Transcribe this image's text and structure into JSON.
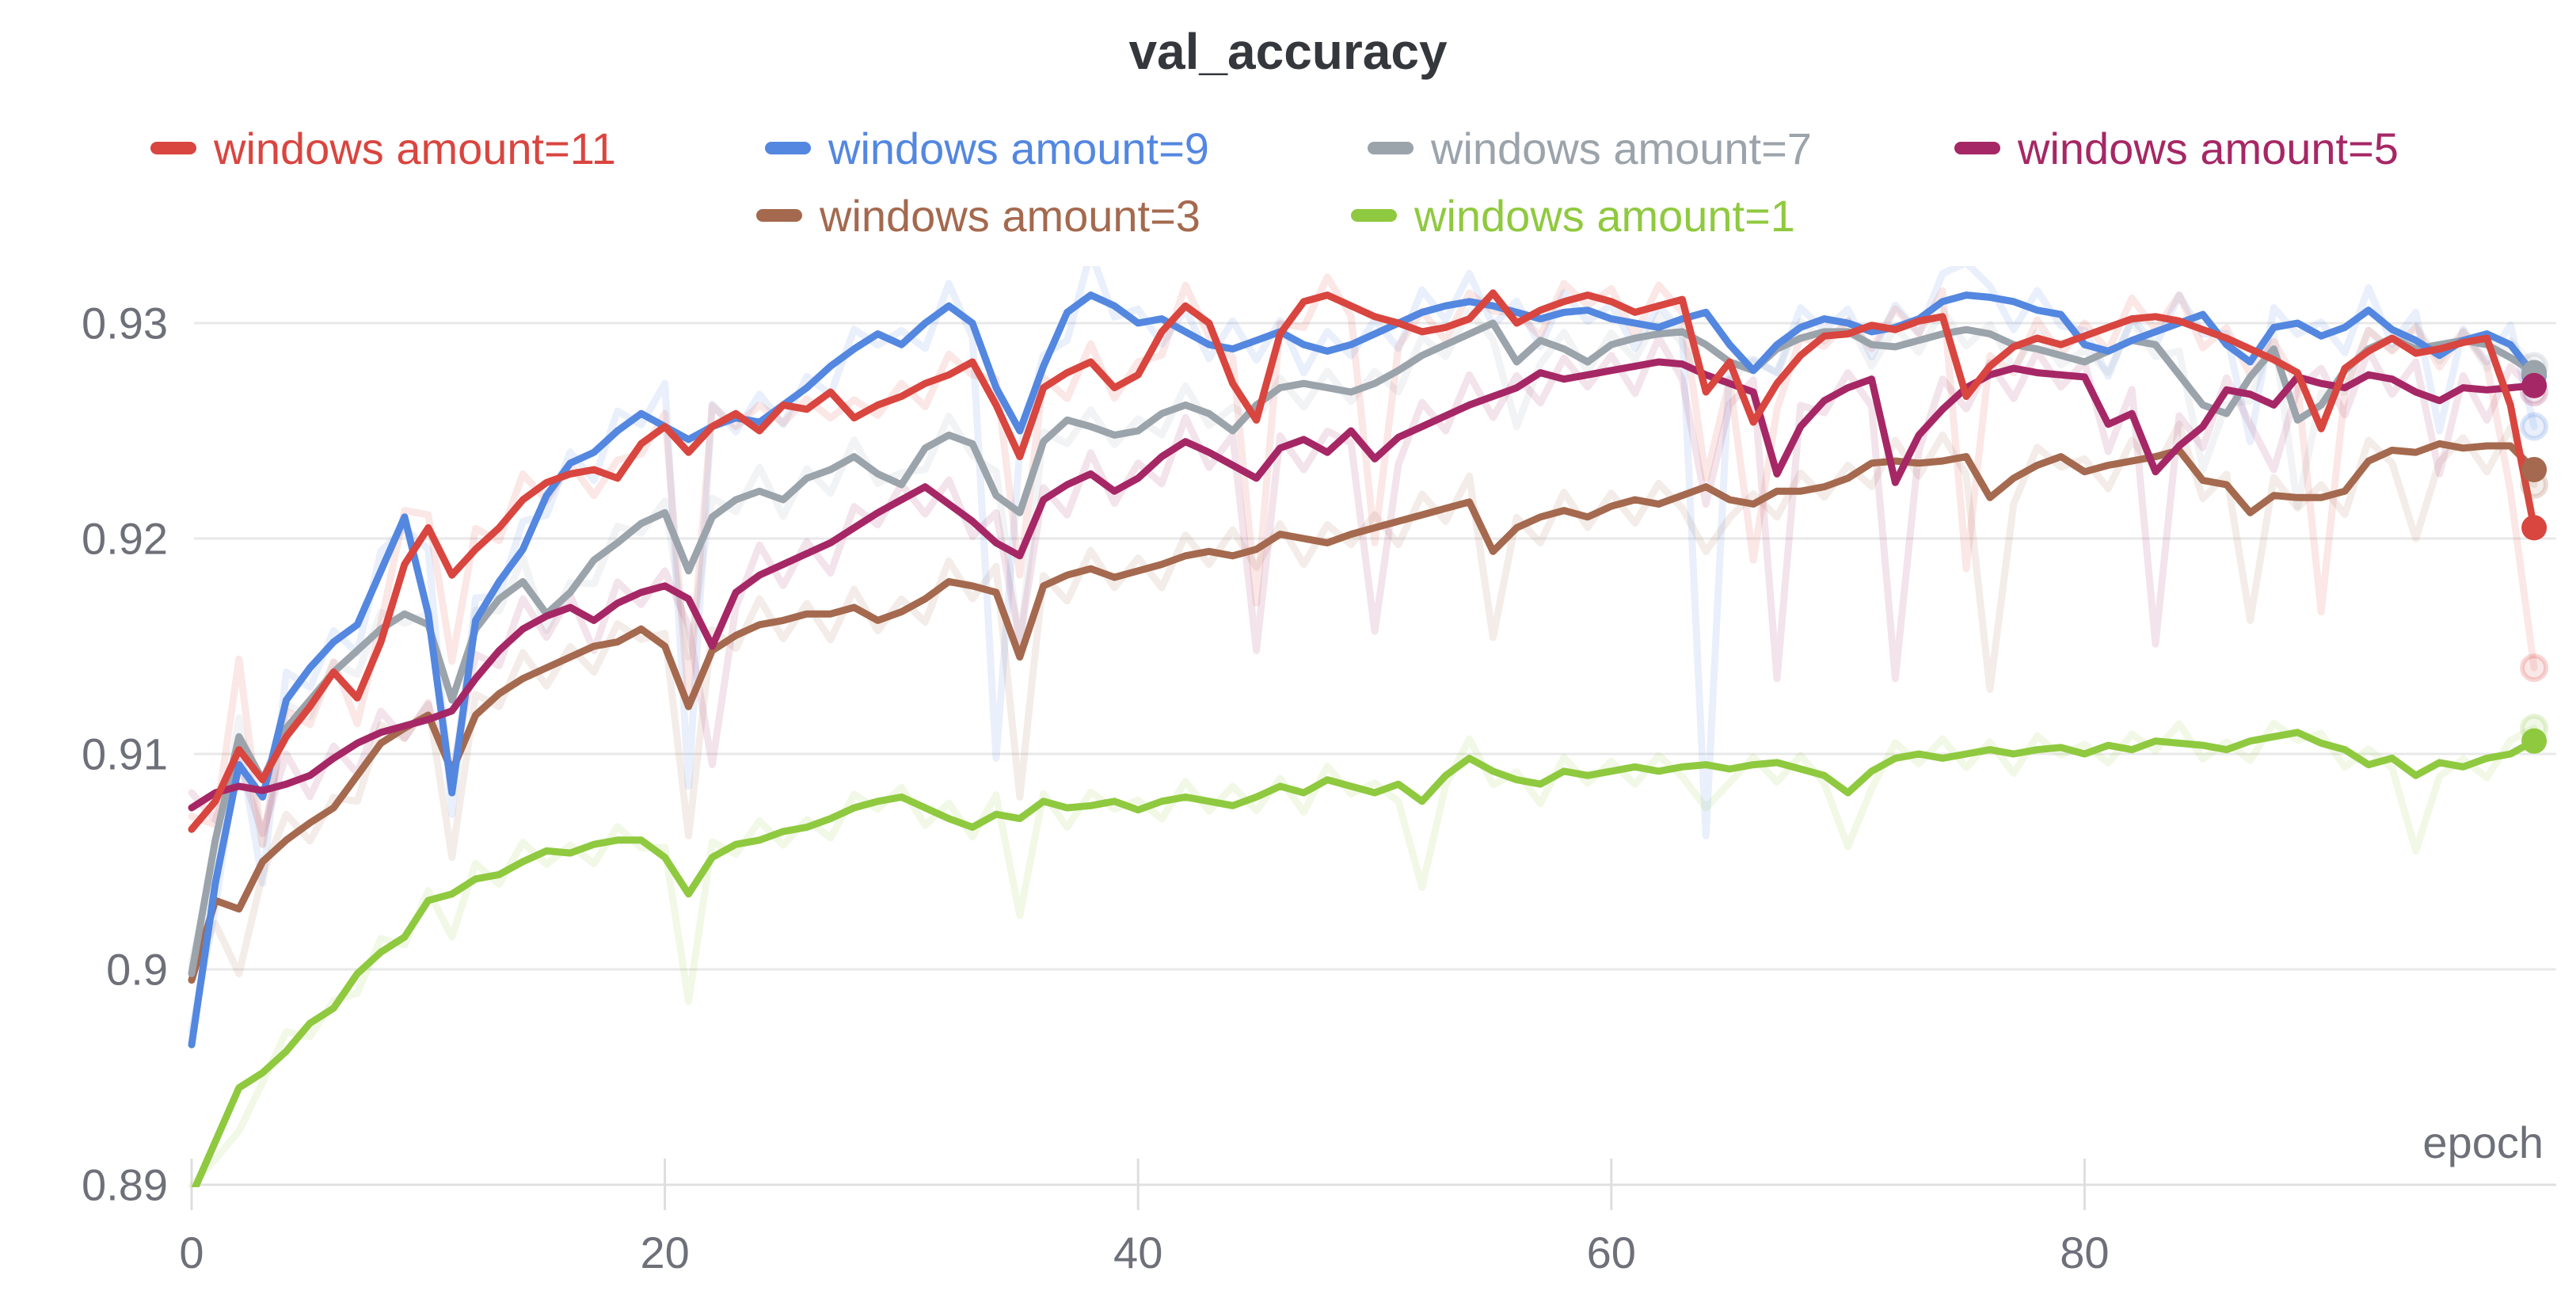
{
  "title": "val_accuracy",
  "axis": {
    "x_label": "epoch",
    "x_ticks": [
      0,
      20,
      40,
      60,
      80
    ],
    "x_tick_labels": [
      "0",
      "20",
      "40",
      "60",
      "80"
    ],
    "y_ticks": [
      0.93,
      0.92,
      0.91,
      0.9,
      0.89
    ],
    "y_tick_labels": [
      "0.93",
      "0.92",
      "0.91",
      "0.9",
      "0.89"
    ]
  },
  "style_colors": {
    "gridline": "#e8e8e8",
    "axis_line": "#e0e0e0",
    "tick_mark": "#dedede",
    "tick_label": "#6e7079",
    "title": "#34373c",
    "background": "#ffffff"
  },
  "legend": [
    {
      "label": "windows amount=11",
      "color": "#d9453f"
    },
    {
      "label": "windows amount=9",
      "color": "#5387e0"
    },
    {
      "label": "windows amount=7",
      "color": "#9ba3ab"
    },
    {
      "label": "windows amount=5",
      "color": "#a62765"
    },
    {
      "label": "windows amount=3",
      "color": "#a4694e"
    },
    {
      "label": "windows amount=1",
      "color": "#8fc93f"
    }
  ],
  "chart_data": {
    "type": "line",
    "title": "val_accuracy",
    "xlabel": "epoch",
    "ylabel": "",
    "x_range": [
      0,
      99
    ],
    "ylim": [
      0.889,
      0.9335
    ],
    "grid": true,
    "legend_position": "top",
    "note": "solid lines are smoothed values; faint lines are raw values = values + raw_spikes (sparse) or small jitter",
    "jitter_pattern": [
      0.5,
      -0.9,
      0.8,
      -0.5,
      1.0,
      -0.7,
      0.4,
      -1.0,
      0.7,
      -0.4
    ],
    "series": [
      {
        "name": "windows amount=11",
        "color": "#d9453f",
        "raw_jitter": 0.0012,
        "values": [
          0.9065,
          0.9078,
          0.9102,
          0.9088,
          0.9108,
          0.9122,
          0.9138,
          0.9126,
          0.9152,
          0.9188,
          0.9205,
          0.9183,
          0.9195,
          0.9205,
          0.9218,
          0.9226,
          0.923,
          0.9232,
          0.9228,
          0.9244,
          0.9252,
          0.924,
          0.9252,
          0.9258,
          0.925,
          0.9262,
          0.926,
          0.9268,
          0.9256,
          0.9262,
          0.9266,
          0.9272,
          0.9276,
          0.9282,
          0.9262,
          0.9238,
          0.927,
          0.9277,
          0.9282,
          0.927,
          0.9276,
          0.9296,
          0.9308,
          0.93,
          0.9272,
          0.9255,
          0.9295,
          0.931,
          0.9313,
          0.9308,
          0.9303,
          0.93,
          0.9296,
          0.9298,
          0.9302,
          0.9314,
          0.93,
          0.9306,
          0.931,
          0.9313,
          0.931,
          0.9305,
          0.9308,
          0.9311,
          0.9268,
          0.9282,
          0.9254,
          0.9272,
          0.9285,
          0.9294,
          0.9295,
          0.9299,
          0.9297,
          0.9301,
          0.9303,
          0.9266,
          0.928,
          0.9289,
          0.9293,
          0.929,
          0.9294,
          0.9298,
          0.9302,
          0.9303,
          0.9301,
          0.9297,
          0.9293,
          0.9288,
          0.9283,
          0.9277,
          0.9251,
          0.9279,
          0.9287,
          0.9293,
          0.9286,
          0.9288,
          0.9291,
          0.9293,
          0.9262,
          0.9205
        ],
        "raw_spikes": {
          "2": 0.0042,
          "3": -0.003,
          "9": 0.0025,
          "11": -0.004,
          "21": -0.0115,
          "35": -0.0055,
          "45": -0.0085,
          "50": -0.0105,
          "64": -0.004,
          "66": -0.0064,
          "75": -0.008,
          "90": -0.0085,
          "98": -0.004,
          "99": -0.0065
        }
      },
      {
        "name": "windows amount=9",
        "color": "#5387e0",
        "raw_jitter": 0.0013,
        "values": [
          0.8965,
          0.904,
          0.9095,
          0.908,
          0.9125,
          0.914,
          0.9152,
          0.916,
          0.9185,
          0.921,
          0.9165,
          0.9082,
          0.9162,
          0.918,
          0.9195,
          0.922,
          0.9235,
          0.924,
          0.925,
          0.9258,
          0.9252,
          0.9246,
          0.9252,
          0.9256,
          0.9254,
          0.9262,
          0.927,
          0.928,
          0.9288,
          0.9295,
          0.929,
          0.93,
          0.9308,
          0.93,
          0.927,
          0.925,
          0.928,
          0.9305,
          0.9313,
          0.9308,
          0.93,
          0.9302,
          0.9296,
          0.929,
          0.9288,
          0.9292,
          0.9296,
          0.929,
          0.9287,
          0.929,
          0.9295,
          0.93,
          0.9305,
          0.9308,
          0.931,
          0.9308,
          0.9305,
          0.9302,
          0.9305,
          0.9306,
          0.9302,
          0.93,
          0.9298,
          0.9302,
          0.9305,
          0.929,
          0.9278,
          0.929,
          0.9298,
          0.9302,
          0.93,
          0.9296,
          0.9298,
          0.9302,
          0.931,
          0.9313,
          0.9312,
          0.931,
          0.9306,
          0.9304,
          0.929,
          0.9287,
          0.9292,
          0.9296,
          0.93,
          0.9304,
          0.929,
          0.9282,
          0.9298,
          0.93,
          0.9294,
          0.9298,
          0.9306,
          0.9297,
          0.9292,
          0.9285,
          0.9292,
          0.9295,
          0.929,
          0.9276
        ],
        "raw_spikes": {
          "3": -0.004,
          "10": 0.003,
          "11": -0.001,
          "20": 0.002,
          "21": -0.0161,
          "34": -0.0172,
          "38": 0.002,
          "64": -0.0243,
          "75": 0.0015,
          "87": -0.0037,
          "95": -0.0035,
          "99": -0.0024
        }
      },
      {
        "name": "windows amount=7",
        "color": "#9ba3ab",
        "raw_jitter": 0.0011,
        "values": [
          0.8998,
          0.906,
          0.9108,
          0.9088,
          0.9112,
          0.9125,
          0.9138,
          0.9148,
          0.9158,
          0.9165,
          0.916,
          0.9125,
          0.9158,
          0.9172,
          0.918,
          0.9165,
          0.9175,
          0.919,
          0.9198,
          0.9207,
          0.9212,
          0.9185,
          0.921,
          0.9218,
          0.9222,
          0.9218,
          0.9228,
          0.9232,
          0.9238,
          0.923,
          0.9225,
          0.9242,
          0.9248,
          0.9244,
          0.922,
          0.9212,
          0.9245,
          0.9255,
          0.9252,
          0.9248,
          0.925,
          0.9258,
          0.9262,
          0.9258,
          0.925,
          0.9262,
          0.927,
          0.9272,
          0.927,
          0.9268,
          0.9272,
          0.9278,
          0.9285,
          0.929,
          0.9295,
          0.93,
          0.9282,
          0.9292,
          0.9288,
          0.9282,
          0.929,
          0.9293,
          0.9295,
          0.9296,
          0.929,
          0.9282,
          0.9278,
          0.9288,
          0.9293,
          0.9296,
          0.9296,
          0.929,
          0.9289,
          0.9292,
          0.9295,
          0.9297,
          0.9295,
          0.929,
          0.9288,
          0.9285,
          0.9282,
          0.9287,
          0.9292,
          0.929,
          0.9276,
          0.9262,
          0.9258,
          0.9275,
          0.9288,
          0.9255,
          0.9262,
          0.9278,
          0.9288,
          0.9293,
          0.9288,
          0.929,
          0.9292,
          0.929,
          0.9284,
          0.9277
        ],
        "raw_spikes": {
          "3": -0.003,
          "11": -0.004,
          "21": -0.004,
          "35": -0.006,
          "56": -0.003,
          "64": -0.002,
          "85": -0.003,
          "89": -0.004,
          "99": 0.0003
        }
      },
      {
        "name": "windows amount=5",
        "color": "#a62765",
        "raw_jitter": 0.0014,
        "values": [
          0.9075,
          0.9082,
          0.9085,
          0.9083,
          0.9086,
          0.909,
          0.9098,
          0.9105,
          0.911,
          0.9113,
          0.9116,
          0.912,
          0.9135,
          0.9148,
          0.9158,
          0.9164,
          0.9168,
          0.9162,
          0.917,
          0.9175,
          0.9178,
          0.9172,
          0.915,
          0.9175,
          0.9183,
          0.9188,
          0.9193,
          0.9198,
          0.9205,
          0.9212,
          0.9218,
          0.9224,
          0.9216,
          0.9208,
          0.9198,
          0.9192,
          0.9218,
          0.9225,
          0.923,
          0.9222,
          0.9228,
          0.9238,
          0.9245,
          0.924,
          0.9234,
          0.9228,
          0.9242,
          0.9246,
          0.924,
          0.925,
          0.9237,
          0.9247,
          0.9252,
          0.9257,
          0.9262,
          0.9266,
          0.927,
          0.9277,
          0.9274,
          0.9276,
          0.9278,
          0.928,
          0.9282,
          0.9281,
          0.9276,
          0.9272,
          0.9268,
          0.923,
          0.9252,
          0.9264,
          0.927,
          0.9274,
          0.9226,
          0.9248,
          0.926,
          0.927,
          0.9276,
          0.9279,
          0.9277,
          0.9276,
          0.9275,
          0.9253,
          0.9258,
          0.9231,
          0.9243,
          0.9252,
          0.9269,
          0.9267,
          0.9262,
          0.9275,
          0.9272,
          0.927,
          0.9276,
          0.9274,
          0.9268,
          0.9264,
          0.927,
          0.9269,
          0.927,
          0.9271
        ],
        "raw_spikes": {
          "3": -0.002,
          "11": -0.003,
          "22": -0.0055,
          "35": -0.004,
          "45": -0.008,
          "50": -0.008,
          "64": -0.006,
          "67": -0.0095,
          "72": -0.0091,
          "83": -0.008,
          "88": -0.003,
          "95": -0.0034,
          "99": -0.0003
        }
      },
      {
        "name": "windows amount=3",
        "color": "#a4694e",
        "raw_jitter": 0.0012,
        "values": [
          0.8995,
          0.9032,
          0.9028,
          0.905,
          0.906,
          0.9068,
          0.9075,
          0.909,
          0.9105,
          0.9112,
          0.9118,
          0.9092,
          0.9118,
          0.9128,
          0.9135,
          0.914,
          0.9145,
          0.915,
          0.9152,
          0.9158,
          0.915,
          0.9122,
          0.9148,
          0.9155,
          0.916,
          0.9162,
          0.9165,
          0.9165,
          0.9168,
          0.9162,
          0.9166,
          0.9172,
          0.918,
          0.9178,
          0.9175,
          0.9145,
          0.9178,
          0.9183,
          0.9186,
          0.9182,
          0.9185,
          0.9188,
          0.9192,
          0.9194,
          0.9192,
          0.9195,
          0.9202,
          0.92,
          0.9198,
          0.9202,
          0.9205,
          0.9208,
          0.9211,
          0.9214,
          0.9217,
          0.9194,
          0.9205,
          0.921,
          0.9213,
          0.921,
          0.9215,
          0.9218,
          0.9216,
          0.922,
          0.9224,
          0.9218,
          0.9216,
          0.9222,
          0.9222,
          0.9224,
          0.9228,
          0.9235,
          0.9236,
          0.9235,
          0.9236,
          0.9238,
          0.9219,
          0.9228,
          0.9234,
          0.9238,
          0.9231,
          0.9234,
          0.9236,
          0.9238,
          0.9241,
          0.9227,
          0.9225,
          0.9212,
          0.922,
          0.9219,
          0.9219,
          0.9222,
          0.9236,
          0.9241,
          0.924,
          0.9244,
          0.9242,
          0.9243,
          0.9243,
          0.9232
        ],
        "raw_spikes": {
          "2": -0.003,
          "11": -0.004,
          "21": -0.006,
          "35": -0.0065,
          "55": -0.004,
          "64": -0.003,
          "76": -0.0089,
          "87": -0.005,
          "94": -0.004,
          "99": -0.0007
        }
      },
      {
        "name": "windows amount=1",
        "color": "#8fc93f",
        "raw_jitter": 0.0009,
        "values": [
          0.8895,
          0.892,
          0.8945,
          0.8952,
          0.8962,
          0.8975,
          0.8982,
          0.8998,
          0.9008,
          0.9015,
          0.9032,
          0.9035,
          0.9042,
          0.9044,
          0.905,
          0.9055,
          0.9054,
          0.9058,
          0.906,
          0.906,
          0.9052,
          0.9035,
          0.9052,
          0.9058,
          0.906,
          0.9064,
          0.9066,
          0.907,
          0.9075,
          0.9078,
          0.908,
          0.9075,
          0.907,
          0.9066,
          0.9072,
          0.907,
          0.9078,
          0.9075,
          0.9076,
          0.9078,
          0.9074,
          0.9078,
          0.908,
          0.9078,
          0.9076,
          0.908,
          0.9085,
          0.9082,
          0.9088,
          0.9085,
          0.9082,
          0.9086,
          0.9078,
          0.909,
          0.9098,
          0.9092,
          0.9088,
          0.9086,
          0.9092,
          0.909,
          0.9092,
          0.9094,
          0.9092,
          0.9094,
          0.9095,
          0.9093,
          0.9095,
          0.9096,
          0.9093,
          0.909,
          0.9082,
          0.9092,
          0.9098,
          0.91,
          0.9098,
          0.91,
          0.9102,
          0.91,
          0.9102,
          0.9103,
          0.91,
          0.9104,
          0.9102,
          0.9106,
          0.9105,
          0.9104,
          0.9102,
          0.9106,
          0.9108,
          0.911,
          0.9105,
          0.9102,
          0.9095,
          0.9098,
          0.909,
          0.9096,
          0.9094,
          0.9098,
          0.91,
          0.9106
        ],
        "raw_spikes": {
          "2": -0.002,
          "11": -0.002,
          "21": -0.005,
          "35": -0.0045,
          "52": -0.004,
          "64": -0.002,
          "70": -0.0025,
          "94": -0.0035,
          "99": 0.0006
        }
      }
    ]
  }
}
